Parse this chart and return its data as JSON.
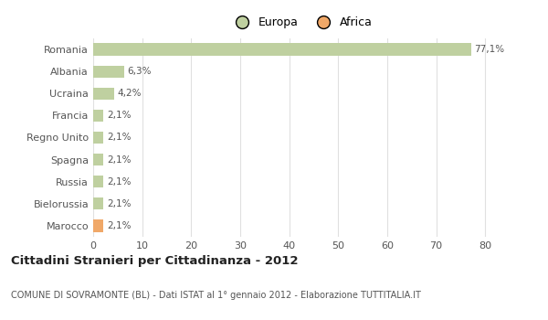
{
  "categories": [
    "Romania",
    "Albania",
    "Ucraina",
    "Francia",
    "Regno Unito",
    "Spagna",
    "Russia",
    "Bielorussia",
    "Marocco"
  ],
  "values": [
    77.1,
    6.3,
    4.2,
    2.1,
    2.1,
    2.1,
    2.1,
    2.1,
    2.1
  ],
  "labels": [
    "77,1%",
    "6,3%",
    "4,2%",
    "2,1%",
    "2,1%",
    "2,1%",
    "2,1%",
    "2,1%",
    "2,1%"
  ],
  "bar_colors": [
    "#bfd0a0",
    "#bfd0a0",
    "#bfd0a0",
    "#bfd0a0",
    "#bfd0a0",
    "#bfd0a0",
    "#bfd0a0",
    "#bfd0a0",
    "#f0a868"
  ],
  "europa_color": "#bfd0a0",
  "africa_color": "#f0a868",
  "xlim": [
    0,
    85
  ],
  "xticks": [
    0,
    10,
    20,
    30,
    40,
    50,
    60,
    70,
    80
  ],
  "title": "Cittadini Stranieri per Cittadinanza - 2012",
  "subtitle": "COMUNE DI SOVRAMONTE (BL) - Dati ISTAT al 1° gennaio 2012 - Elaborazione TUTTITALIA.IT",
  "legend_europa": "Europa",
  "legend_africa": "Africa",
  "background_color": "#ffffff",
  "grid_color": "#e0e0e0",
  "bar_height": 0.55
}
